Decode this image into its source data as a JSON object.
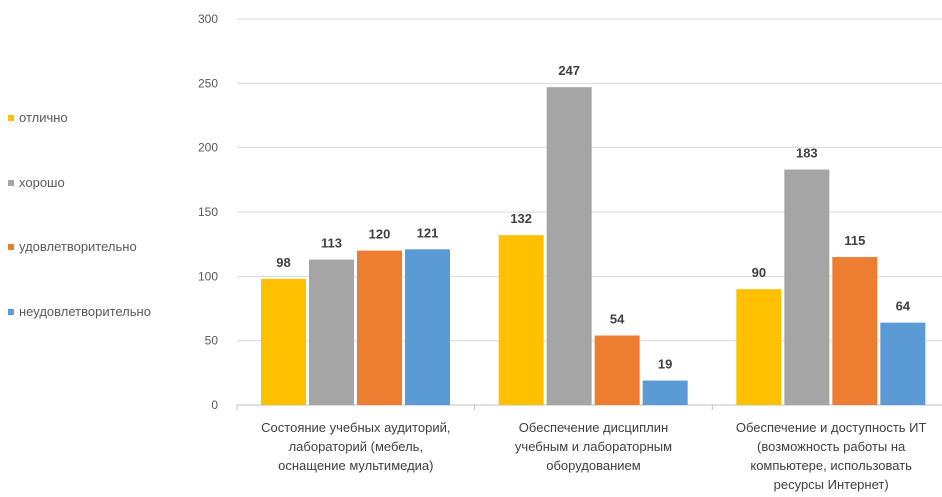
{
  "chart_data": {
    "type": "bar",
    "categories": [
      [
        "Состояние учебных аудиторий,",
        "лабораторий (мебель,",
        "оснащение мультимедиа)"
      ],
      [
        "Обеспечение дисциплин",
        "учебным и лабораторным",
        "оборудованием"
      ],
      [
        "Обеспечение и доступность ИТ",
        "(возможность работы на",
        "компьютере, использовать",
        "ресурсы Интернет)"
      ]
    ],
    "series": [
      {
        "name": "отлично",
        "color": "#FFC000",
        "values": [
          98,
          132,
          90
        ]
      },
      {
        "name": "хорошо",
        "color": "#A5A5A5",
        "values": [
          113,
          247,
          183
        ]
      },
      {
        "name": "удовлетворительно",
        "color": "#ED7D31",
        "values": [
          120,
          54,
          115
        ]
      },
      {
        "name": "неудовлетворительно",
        "color": "#5B9BD5",
        "values": [
          121,
          19,
          64
        ]
      }
    ],
    "ylim": [
      0,
      300
    ],
    "yticks": [
      0,
      50,
      100,
      150,
      200,
      250,
      300
    ],
    "grid": true,
    "legend_position": "left"
  }
}
